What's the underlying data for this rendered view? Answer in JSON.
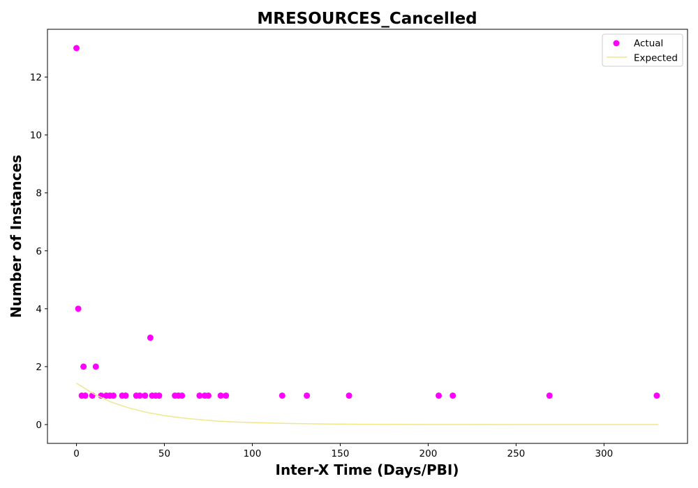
{
  "chart_data": {
    "type": "scatter",
    "title": "MRESOURCES_Cancelled",
    "xlabel": "Inter-X Time (Days/PBI)",
    "ylabel": "Number of Instances",
    "xlim": [
      -16.5,
      347.5
    ],
    "ylim": [
      -0.65,
      13.65
    ],
    "xticks": [
      0,
      50,
      100,
      150,
      200,
      250,
      300
    ],
    "yticks": [
      0,
      2,
      4,
      6,
      8,
      10,
      12
    ],
    "grid": false,
    "legend_position": "top-right",
    "colors": {
      "actual": "#ff00ff",
      "expected": "#f0e68c"
    },
    "series": [
      {
        "name": "Actual",
        "kind": "scatter",
        "x": [
          0,
          1,
          3,
          4,
          5,
          9,
          11,
          14,
          17,
          19,
          21,
          26,
          28,
          34,
          36,
          39,
          42,
          43,
          45,
          47,
          56,
          58,
          60,
          70,
          73,
          75,
          82,
          85,
          117,
          131,
          155,
          206,
          214,
          269,
          330
        ],
        "y": [
          13,
          4,
          1,
          2,
          1,
          1,
          2,
          1,
          1,
          1,
          1,
          1,
          1,
          1,
          1,
          1,
          3,
          1,
          1,
          1,
          1,
          1,
          1,
          1,
          1,
          1,
          1,
          1,
          1,
          1,
          1,
          1,
          1,
          1,
          1
        ]
      },
      {
        "name": "Expected",
        "kind": "line",
        "x": [
          0,
          10,
          20,
          30,
          40,
          50,
          60,
          70,
          80,
          90,
          100,
          120,
          140,
          160,
          180,
          200,
          220,
          250,
          280,
          310,
          331
        ],
        "y": [
          1.43,
          1.05,
          0.77,
          0.57,
          0.42,
          0.31,
          0.23,
          0.17,
          0.12,
          0.09,
          0.07,
          0.04,
          0.02,
          0.01,
          0.007,
          0.004,
          0.002,
          0.001,
          0.0005,
          0.0002,
          0.0001
        ]
      }
    ]
  }
}
